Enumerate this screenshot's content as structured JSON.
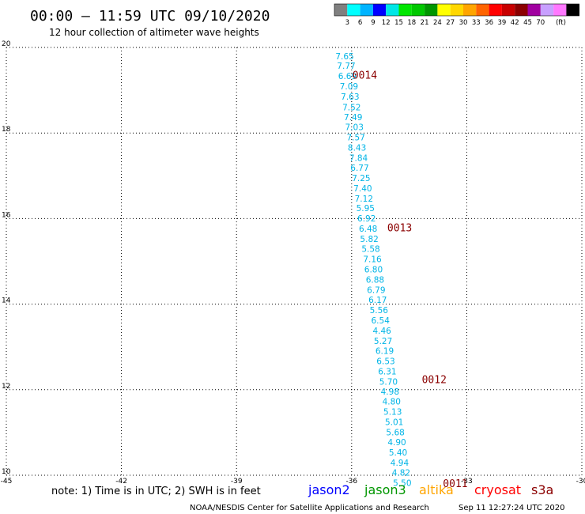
{
  "header": {
    "title": "00:00 – 11:59 UTC 09/10/2020",
    "subtitle": "12 hour collection of altimeter wave heights"
  },
  "colorbar": {
    "colors": [
      "#808080",
      "#00ffff",
      "#00b4ff",
      "#0000ff",
      "#00e6e6",
      "#00e600",
      "#00c800",
      "#009600",
      "#ffff00",
      "#ffd700",
      "#ffa500",
      "#ff6400",
      "#ff0000",
      "#c80000",
      "#8b0000",
      "#a000a0",
      "#c8a0ff",
      "#ff78ff",
      "#000000"
    ],
    "labels": [
      "3",
      "6",
      "9",
      "12",
      "15",
      "18",
      "21",
      "24",
      "27",
      "30",
      "33",
      "36",
      "39",
      "42",
      "45",
      "70"
    ],
    "unit": "(ft)"
  },
  "chart_data": {
    "type": "scatter",
    "xlim": [
      -45,
      -30
    ],
    "ylim": [
      10,
      20
    ],
    "x_ticks": [
      "-45",
      "-42",
      "-39",
      "-36",
      "-33",
      "-30"
    ],
    "y_ticks": [
      "10",
      "12",
      "14",
      "16",
      "18",
      "20"
    ],
    "grid": true,
    "points": [
      {
        "x": -36.18,
        "y": 19.72,
        "label": "7.65"
      },
      {
        "x": -36.14,
        "y": 19.5,
        "label": "7.77"
      },
      {
        "x": -36.11,
        "y": 19.26,
        "label": "6.69"
      },
      {
        "x": -36.07,
        "y": 19.02,
        "label": "7.09"
      },
      {
        "x": -36.04,
        "y": 18.78,
        "label": "7.63"
      },
      {
        "x": -36.0,
        "y": 18.53,
        "label": "7.52"
      },
      {
        "x": -35.96,
        "y": 18.3,
        "label": "7.49"
      },
      {
        "x": -35.93,
        "y": 18.07,
        "label": "7.03"
      },
      {
        "x": -35.89,
        "y": 17.83,
        "label": "7.57"
      },
      {
        "x": -35.86,
        "y": 17.59,
        "label": "8.43"
      },
      {
        "x": -35.82,
        "y": 17.35,
        "label": "7.84"
      },
      {
        "x": -35.79,
        "y": 17.12,
        "label": "6.77"
      },
      {
        "x": -35.75,
        "y": 16.88,
        "label": "7.25"
      },
      {
        "x": -35.71,
        "y": 16.64,
        "label": "7.40"
      },
      {
        "x": -35.68,
        "y": 16.4,
        "label": "7.12"
      },
      {
        "x": -35.64,
        "y": 16.17,
        "label": "5.95"
      },
      {
        "x": -35.61,
        "y": 15.93,
        "label": "6.92"
      },
      {
        "x": -35.57,
        "y": 15.69,
        "label": "6.48"
      },
      {
        "x": -35.54,
        "y": 15.45,
        "label": "5.82"
      },
      {
        "x": -35.5,
        "y": 15.22,
        "label": "5.58"
      },
      {
        "x": -35.46,
        "y": 14.98,
        "label": "7.16"
      },
      {
        "x": -35.43,
        "y": 14.74,
        "label": "6.80"
      },
      {
        "x": -35.39,
        "y": 14.5,
        "label": "6.88"
      },
      {
        "x": -35.36,
        "y": 14.26,
        "label": "6.79"
      },
      {
        "x": -35.32,
        "y": 14.03,
        "label": "6.17"
      },
      {
        "x": -35.29,
        "y": 13.79,
        "label": "5.56"
      },
      {
        "x": -35.25,
        "y": 13.55,
        "label": "6.54"
      },
      {
        "x": -35.21,
        "y": 13.31,
        "label": "4.46"
      },
      {
        "x": -35.18,
        "y": 13.07,
        "label": "5.27"
      },
      {
        "x": -35.14,
        "y": 12.84,
        "label": "6.19"
      },
      {
        "x": -35.11,
        "y": 12.6,
        "label": "6.53"
      },
      {
        "x": -35.07,
        "y": 12.36,
        "label": "6.31"
      },
      {
        "x": -35.04,
        "y": 12.12,
        "label": "5.70"
      },
      {
        "x": -35.0,
        "y": 11.89,
        "label": "4.98"
      },
      {
        "x": -34.96,
        "y": 11.65,
        "label": "4.80"
      },
      {
        "x": -34.93,
        "y": 11.41,
        "label": "5.13"
      },
      {
        "x": -34.89,
        "y": 11.17,
        "label": "5.01"
      },
      {
        "x": -34.86,
        "y": 10.93,
        "label": "5.68"
      },
      {
        "x": -34.82,
        "y": 10.7,
        "label": "4.90"
      },
      {
        "x": -34.79,
        "y": 10.46,
        "label": "5.40"
      },
      {
        "x": -34.75,
        "y": 10.22,
        "label": "4.94"
      },
      {
        "x": -34.71,
        "y": 9.99,
        "label": "4.82"
      },
      {
        "x": -34.68,
        "y": 9.75,
        "label": "5.50"
      }
    ],
    "pass_labels": [
      {
        "x": -35.98,
        "y": 19.27,
        "label": "0014"
      },
      {
        "x": -35.07,
        "y": 15.7,
        "label": "0013"
      },
      {
        "x": -34.17,
        "y": 12.15,
        "label": "0012"
      },
      {
        "x": -33.62,
        "y": 9.72,
        "label": "0011"
      }
    ]
  },
  "footer": {
    "note": "note: 1) Time is in UTC; 2) SWH is in feet",
    "satellites": [
      {
        "name": "jason2",
        "color": "#0000ff"
      },
      {
        "name": "jason3",
        "color": "#009600"
      },
      {
        "name": "altika",
        "color": "#ffa500"
      },
      {
        "name": "cryosat",
        "color": "#ff0000"
      },
      {
        "name": "s3a",
        "color": "#8b0000"
      }
    ],
    "credit": "NOAA/NESDIS Center for Satellite Applications and Research",
    "timestamp": "Sep 11 12:27:24 UTC 2020"
  }
}
